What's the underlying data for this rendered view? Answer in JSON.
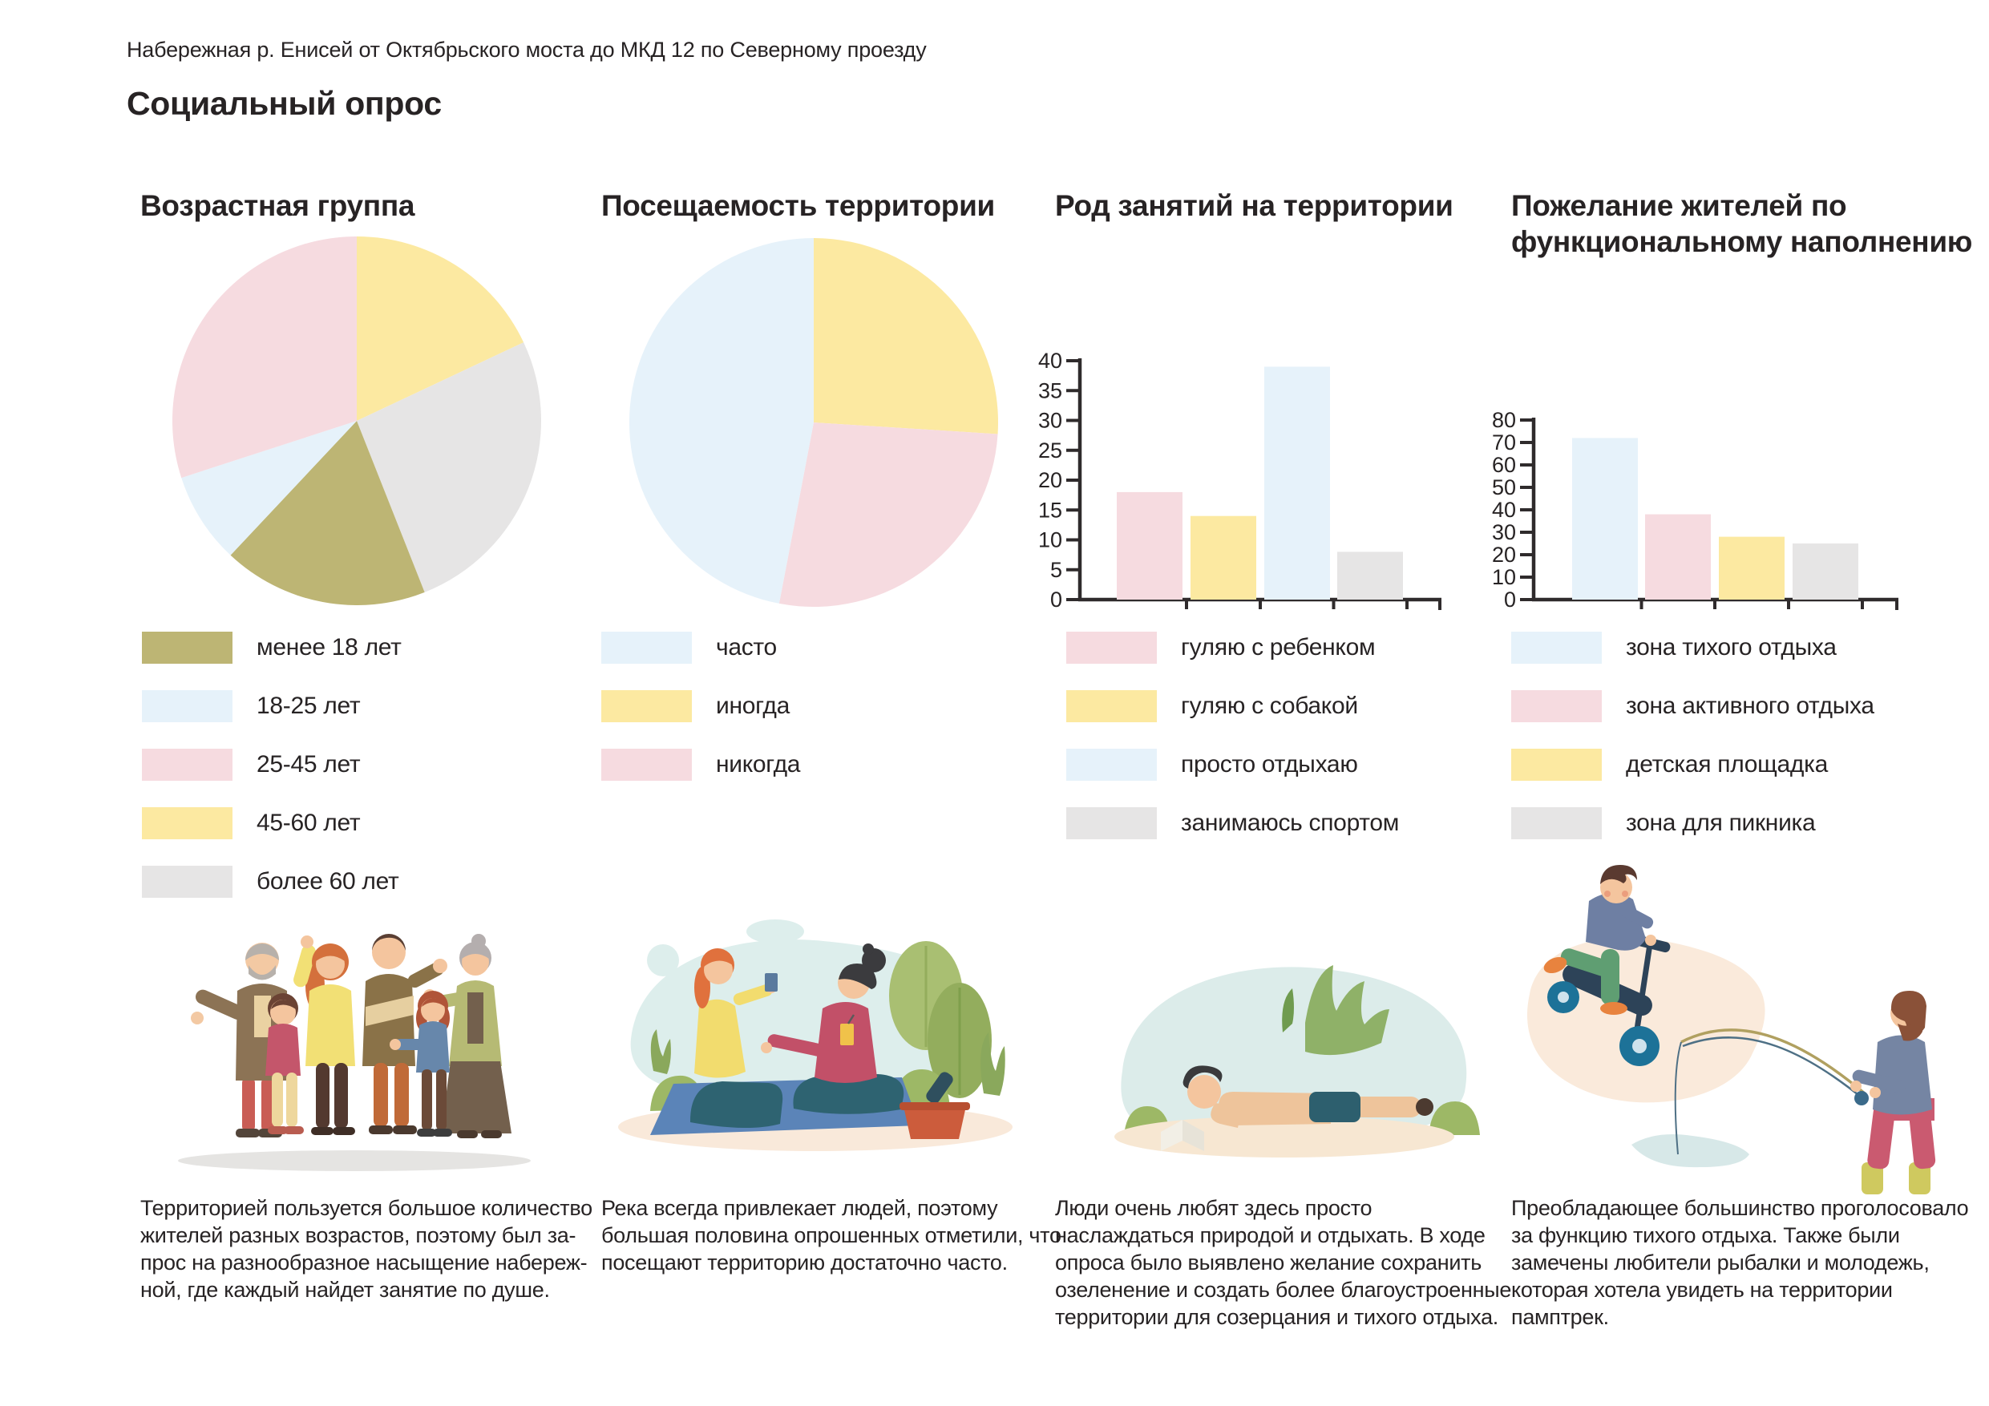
{
  "page": {
    "header": "Набережная р. Енисей от Октябрьского моста до МКД 12 по Северному проезду",
    "title": "Социальный опрос"
  },
  "palette": {
    "pink": "#f6dbe0",
    "yellow": "#fce9a1",
    "blue": "#e6f2fa",
    "gray": "#e6e5e5",
    "olive": "#bdb574",
    "text": "#272324",
    "axis": "#2f2b2c"
  },
  "chart_data": [
    {
      "type": "pie",
      "title": "Возрастная группа",
      "start": "top",
      "clockwise": true,
      "slices": [
        {
          "label": "45-60 лет",
          "color": "yellow",
          "percent": 18
        },
        {
          "label": "более 60 лет",
          "color": "gray",
          "percent": 26
        },
        {
          "label": "менее 18 лет",
          "color": "olive",
          "percent": 18
        },
        {
          "label": "18-25 лет",
          "color": "blue",
          "percent": 8
        },
        {
          "label": "25-45 лет",
          "color": "pink",
          "percent": 30
        }
      ],
      "legend": [
        {
          "label": "менее 18 лет",
          "color": "olive"
        },
        {
          "label": "18-25 лет",
          "color": "blue"
        },
        {
          "label": "25-45 лет",
          "color": "pink"
        },
        {
          "label": "45-60 лет",
          "color": "yellow"
        },
        {
          "label": "более 60 лет",
          "color": "gray"
        }
      ]
    },
    {
      "type": "pie",
      "title": "Посещаемость территории",
      "start": "top",
      "clockwise": true,
      "slices": [
        {
          "label": "иногда",
          "color": "yellow",
          "percent": 26
        },
        {
          "label": "никогда",
          "color": "pink",
          "percent": 27
        },
        {
          "label": "часто",
          "color": "blue",
          "percent": 47
        }
      ],
      "legend": [
        {
          "label": "часто",
          "color": "blue"
        },
        {
          "label": "иногда",
          "color": "yellow"
        },
        {
          "label": "никогда",
          "color": "pink"
        }
      ]
    },
    {
      "type": "bar",
      "title": "Род занятий на территории",
      "categories": [
        "гуляю с ребенком",
        "гуляю с собакой",
        "просто отдыхаю",
        "занимаюсь спортом"
      ],
      "values": [
        18,
        14,
        39,
        8
      ],
      "colors": [
        "pink",
        "yellow",
        "blue",
        "gray"
      ],
      "ylim": [
        0,
        40
      ],
      "ytick_step": 5,
      "grid": false,
      "legend": [
        {
          "label": "гуляю с ребенком",
          "color": "pink"
        },
        {
          "label": "гуляю с собакой",
          "color": "yellow"
        },
        {
          "label": "просто отдыхаю",
          "color": "blue"
        },
        {
          "label": "занимаюсь спортом",
          "color": "gray"
        }
      ]
    },
    {
      "type": "bar",
      "title": "Пожелание жителей по функциональному наполнению",
      "categories": [
        "зона тихого отдыха",
        "зона активного отдыха",
        "детская площадка",
        "зона для пикника"
      ],
      "values": [
        72,
        38,
        28,
        25
      ],
      "colors": [
        "blue",
        "pink",
        "yellow",
        "gray"
      ],
      "ylim": [
        0,
        80
      ],
      "ytick_step": 10,
      "grid": false,
      "legend": [
        {
          "label": "зона тихого отдыха",
          "color": "blue"
        },
        {
          "label": "зона активного отдыха",
          "color": "pink"
        },
        {
          "label": "детская площадка",
          "color": "yellow"
        },
        {
          "label": "зона для пикника",
          "color": "gray"
        }
      ]
    }
  ],
  "sections": [
    {
      "title_lines": [
        "Возрастная группа"
      ],
      "illustration": "family-group",
      "caption_lines": [
        "Территорией пользуется большое количество",
        "жителей разных возрастов, поэтому был за-",
        "прос на разнообразное насыщение набереж-",
        "ной, где каждый найдет занятие по душе."
      ]
    },
    {
      "title_lines": [
        "Посещаемость территории"
      ],
      "illustration": "picnic-friends",
      "caption_lines": [
        "Река всегда привлекает людей, поэтому",
        "большая половина опрошенных отметили, что",
        "посещают территорию достаточно часто."
      ]
    },
    {
      "title_lines": [
        "Род занятий на территории"
      ],
      "illustration": "reading-in-nature",
      "caption_lines": [
        "Люди очень любят здесь просто",
        "наслаждаться природой и отдыхать. В ходе",
        "опроса было выявлено желание сохранить",
        "озеленение и создать более благоустроенные",
        "территории для созерцания и тихого отдыха."
      ]
    },
    {
      "title_lines": [
        "Пожелание жителей по",
        "функциональному наполнению"
      ],
      "illustration": "scooter-and-fisherman",
      "caption_lines": [
        "Преобладающее большинство проголосовало",
        "за функцию тихого отдыха. Также были",
        "замечены любители рыбалки и молодежь,",
        "которая хотела увидеть на территории",
        "памптрек."
      ]
    }
  ]
}
